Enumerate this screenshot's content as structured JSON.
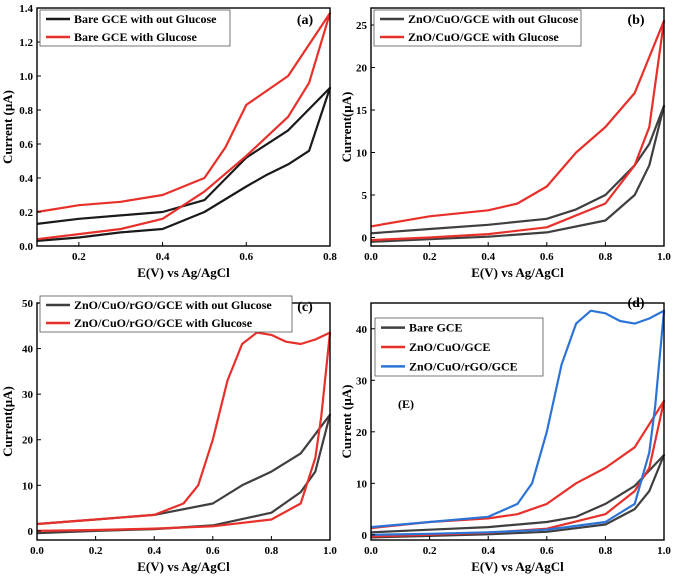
{
  "colors": {
    "black": "#1a1a1a",
    "red": "#e8302b",
    "gray": "#3f3f3f",
    "blue": "#2b74d6"
  },
  "chart_data": [
    {
      "type": "line",
      "panel_label": "(a)",
      "xlabel": "E(V) vs Ag/AgCl",
      "ylabel": "Current (μA)",
      "xlim": [
        0.1,
        0.8
      ],
      "ylim": [
        0.0,
        1.4
      ],
      "xticks": [
        0.2,
        0.4,
        0.6,
        0.8
      ],
      "xtick_labels": [
        "0.2",
        "0.4",
        "0.6",
        "0.8"
      ],
      "yticks": [
        0.0,
        0.2,
        0.4,
        0.6,
        0.8,
        1.0,
        1.2,
        1.4
      ],
      "ytick_labels": [
        "0.0",
        "0.2",
        "0.4",
        "0.6",
        "0.8",
        "1.0",
        "1.2",
        "1.4"
      ],
      "legend_position": "top-left",
      "series": [
        {
          "name": "Bare GCE with out Glucose",
          "color": "black",
          "x": [
            0.1,
            0.2,
            0.3,
            0.4,
            0.5,
            0.6,
            0.7,
            0.8,
            0.8,
            0.75,
            0.7,
            0.65,
            0.6,
            0.5,
            0.4,
            0.3,
            0.2,
            0.1
          ],
          "y": [
            0.13,
            0.16,
            0.18,
            0.2,
            0.27,
            0.52,
            0.68,
            0.93,
            0.93,
            0.56,
            0.48,
            0.42,
            0.35,
            0.2,
            0.1,
            0.08,
            0.05,
            0.03
          ]
        },
        {
          "name": "Bare GCE with Glucose",
          "color": "red",
          "x": [
            0.1,
            0.2,
            0.3,
            0.4,
            0.5,
            0.55,
            0.6,
            0.7,
            0.8,
            0.8,
            0.75,
            0.7,
            0.6,
            0.5,
            0.4,
            0.3,
            0.2,
            0.1
          ],
          "y": [
            0.2,
            0.24,
            0.26,
            0.3,
            0.4,
            0.58,
            0.83,
            1.0,
            1.37,
            1.37,
            0.96,
            0.76,
            0.53,
            0.32,
            0.16,
            0.1,
            0.07,
            0.04
          ]
        }
      ]
    },
    {
      "type": "line",
      "panel_label": "(b)",
      "xlabel": "E(V) vs Ag/AgCl",
      "ylabel": "Current(μA)",
      "xlim": [
        0.0,
        1.0
      ],
      "ylim": [
        -1,
        27
      ],
      "xticks": [
        0.0,
        0.2,
        0.4,
        0.6,
        0.8,
        1.0
      ],
      "xtick_labels": [
        "0.0",
        "0.2",
        "0.4",
        "0.6",
        "0.8",
        "1.0"
      ],
      "yticks": [
        0,
        5,
        10,
        15,
        20,
        25
      ],
      "ytick_labels": [
        "0",
        "5",
        "10",
        "15",
        "20",
        "25"
      ],
      "legend_position": "top-left",
      "series": [
        {
          "name": "ZnO/CuO/GCE with out Glucose",
          "color": "gray",
          "x": [
            0.0,
            0.2,
            0.4,
            0.6,
            0.7,
            0.8,
            0.9,
            0.95,
            1.0,
            1.0,
            0.95,
            0.9,
            0.8,
            0.6,
            0.4,
            0.2,
            0.0
          ],
          "y": [
            0.5,
            1.0,
            1.5,
            2.2,
            3.3,
            5.0,
            8.5,
            11.0,
            15.5,
            15.5,
            8.5,
            5.0,
            2.0,
            0.6,
            0.1,
            -0.2,
            -0.5
          ]
        },
        {
          "name": "ZnO/CuO/GCE with  Glucose",
          "color": "red",
          "x": [
            0.0,
            0.2,
            0.4,
            0.5,
            0.6,
            0.7,
            0.8,
            0.9,
            1.0,
            1.0,
            0.95,
            0.9,
            0.8,
            0.6,
            0.4,
            0.2,
            0.0
          ],
          "y": [
            1.3,
            2.5,
            3.2,
            4.0,
            6.0,
            10.0,
            13.0,
            17.0,
            25.5,
            25.5,
            13.0,
            8.5,
            4.0,
            1.2,
            0.4,
            0.0,
            -0.3
          ]
        }
      ]
    },
    {
      "type": "line",
      "panel_label": "(c)",
      "xlabel": "E(V) vs Ag/AgCl",
      "ylabel": "Current(μA)",
      "xlim": [
        0.0,
        1.0
      ],
      "ylim": [
        -2,
        50
      ],
      "xticks": [
        0.0,
        0.2,
        0.4,
        0.6,
        0.8,
        1.0
      ],
      "xtick_labels": [
        "0.0",
        "0.2",
        "0.4",
        "0.6",
        "0.8",
        "1.0"
      ],
      "yticks": [
        0,
        10,
        20,
        30,
        40,
        50
      ],
      "ytick_labels": [
        "0",
        "10",
        "20",
        "30",
        "40",
        "50"
      ],
      "legend_position": "top-left",
      "series": [
        {
          "name": "ZnO/CuO/rGO/GCE with out Glucose",
          "color": "gray",
          "x": [
            0.0,
            0.2,
            0.4,
            0.6,
            0.7,
            0.8,
            0.9,
            1.0,
            1.0,
            0.95,
            0.9,
            0.8,
            0.6,
            0.4,
            0.2,
            0.0
          ],
          "y": [
            1.5,
            2.5,
            3.5,
            6.0,
            10.0,
            13.0,
            17.0,
            25.5,
            25.5,
            13.0,
            8.5,
            4.0,
            1.2,
            0.4,
            0.0,
            -0.5
          ]
        },
        {
          "name": "ZnO/CuO/rGO/GCE with  Glucose",
          "color": "red",
          "x": [
            0.0,
            0.2,
            0.4,
            0.5,
            0.55,
            0.6,
            0.65,
            0.7,
            0.75,
            0.8,
            0.85,
            0.9,
            0.95,
            1.0,
            1.0,
            0.97,
            0.95,
            0.9,
            0.8,
            0.6,
            0.4,
            0.2,
            0.0
          ],
          "y": [
            1.5,
            2.5,
            3.5,
            6.0,
            10.0,
            20.0,
            33.0,
            41.0,
            43.5,
            43.0,
            41.5,
            41.0,
            42.0,
            43.5,
            43.5,
            25.0,
            16.0,
            6.0,
            2.5,
            1.0,
            0.5,
            0.2,
            0.0
          ]
        }
      ]
    },
    {
      "type": "line",
      "panel_label": "(d)",
      "annotation": "(E)",
      "xlabel": "E(V) vs Ag/AgCl",
      "ylabel": "Current (μA)",
      "xlim": [
        0.0,
        1.0
      ],
      "ylim": [
        -1,
        45
      ],
      "xticks": [
        0.0,
        0.2,
        0.4,
        0.6,
        0.8,
        1.0
      ],
      "xtick_labels": [
        "0.0",
        "0.2",
        "0.4",
        "0.6",
        "0.8",
        "1.0"
      ],
      "yticks": [
        0,
        10,
        20,
        30,
        40
      ],
      "ytick_labels": [
        "0",
        "10",
        "20",
        "30",
        "40"
      ],
      "legend_position": "top-left",
      "series": [
        {
          "name": "Bare GCE",
          "color": "gray",
          "x": [
            0.0,
            0.2,
            0.4,
            0.6,
            0.7,
            0.8,
            0.9,
            1.0,
            1.0,
            0.95,
            0.9,
            0.8,
            0.6,
            0.4,
            0.2,
            0.0
          ],
          "y": [
            0.5,
            1.0,
            1.5,
            2.5,
            3.5,
            6.0,
            9.5,
            15.5,
            15.5,
            8.5,
            5.0,
            2.0,
            0.6,
            0.1,
            -0.2,
            -0.5
          ]
        },
        {
          "name": "ZnO/CuO/GCE",
          "color": "red",
          "x": [
            0.0,
            0.2,
            0.4,
            0.5,
            0.6,
            0.7,
            0.8,
            0.9,
            1.0,
            1.0,
            0.95,
            0.9,
            0.8,
            0.6,
            0.4,
            0.2,
            0.0
          ],
          "y": [
            1.3,
            2.5,
            3.2,
            4.0,
            6.0,
            10.0,
            13.0,
            17.0,
            26.0,
            26.0,
            13.0,
            8.5,
            4.0,
            1.2,
            0.4,
            0.0,
            -0.3
          ]
        },
        {
          "name": "ZnO/CuO/rGO/GCE",
          "color": "blue",
          "x": [
            0.0,
            0.2,
            0.4,
            0.5,
            0.55,
            0.6,
            0.65,
            0.7,
            0.75,
            0.8,
            0.85,
            0.9,
            0.95,
            1.0,
            1.0,
            0.97,
            0.95,
            0.9,
            0.8,
            0.6,
            0.4,
            0.2,
            0.0
          ],
          "y": [
            1.5,
            2.5,
            3.5,
            6.0,
            10.0,
            20.0,
            33.0,
            41.0,
            43.5,
            43.0,
            41.5,
            41.0,
            42.0,
            43.5,
            43.5,
            25.0,
            16.0,
            6.0,
            2.5,
            1.0,
            0.5,
            0.2,
            0.0
          ]
        }
      ]
    }
  ]
}
